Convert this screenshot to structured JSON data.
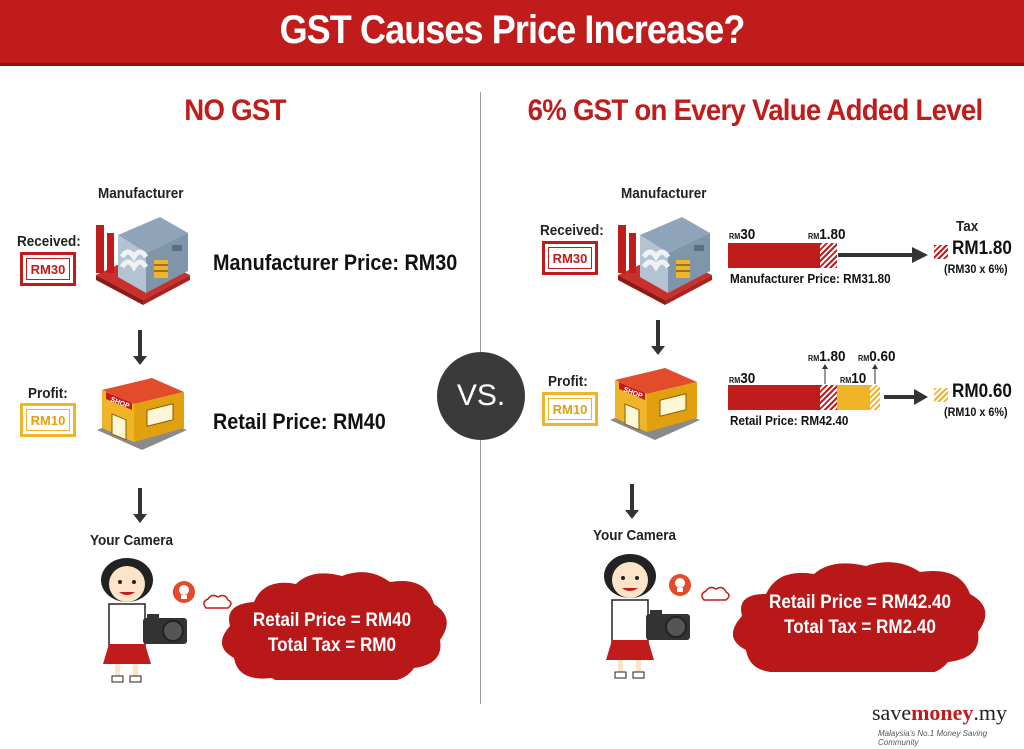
{
  "header": {
    "title": "GST Causes Price Increase?"
  },
  "left": {
    "title": "NO GST",
    "manufacturer_heading": "Manufacturer",
    "received_label": "Received:",
    "received_value": "RM30",
    "manufacturer_price": "Manufacturer  Price: RM30",
    "profit_label": "Profit:",
    "profit_value": "RM10",
    "retail_price": "Retail Price: RM40",
    "camera_heading": "Your Camera",
    "summary_line1": "Retail Price = RM40",
    "summary_line2": "Total Tax = RM0"
  },
  "vs_label": "VS.",
  "right": {
    "title": "6% GST on Every Value Added Level",
    "manufacturer_heading": "Manufacturer",
    "received_label": "Received:",
    "received_value": "RM30",
    "tax_heading": "Tax",
    "bar1": {
      "base_rm": "RM",
      "base_num": "30",
      "tax_rm": "RM",
      "tax_num": "1.80",
      "caption": "Manufacturer Price: RM31.80",
      "tax_result": "RM1.80",
      "tax_calc": "(RM30 x 6%)"
    },
    "profit_label": "Profit:",
    "profit_value": "RM10",
    "bar2": {
      "base_rm": "RM",
      "base_num": "30",
      "tax1_rm": "RM",
      "tax1_num": "1.80",
      "profit_rm": "RM",
      "profit_num": "10",
      "tax2_rm": "RM",
      "tax2_num": "0.60",
      "caption": "Retail Price: RM42.40",
      "tax_result": "RM0.60",
      "tax_calc": "(RM10 x 6%)"
    },
    "camera_heading": "Your Camera",
    "summary_line1": "Retail Price = RM42.40",
    "summary_line2": "Total Tax = RM2.40"
  },
  "brand": {
    "save": "save",
    "money": "money",
    "domain": ".my",
    "tagline": "Malaysia's No.1 Money Saving Community"
  },
  "colors": {
    "accent_red": "#c01c1c",
    "accent_yellow": "#f0b429",
    "dark": "#3a3a3a"
  },
  "icons": [
    "factory-icon",
    "shop-icon",
    "person-with-camera-icon",
    "lightbulb-icon",
    "arrow-down-icon",
    "arrow-right-icon"
  ]
}
